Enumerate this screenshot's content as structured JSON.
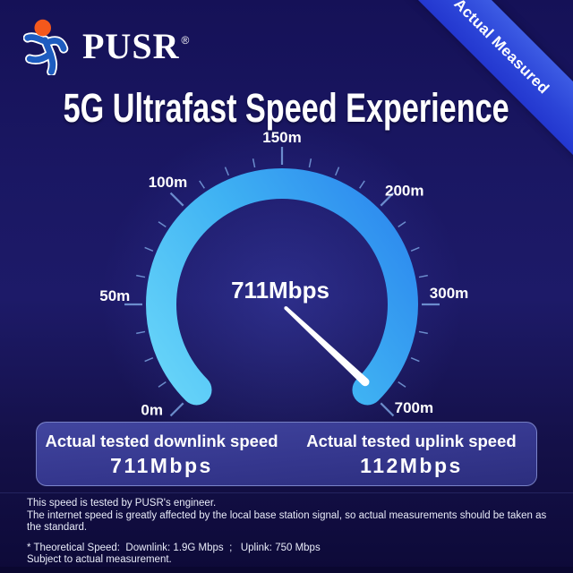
{
  "colors": {
    "background_top": "#151157",
    "background_bottom": "#0d0a38",
    "ribbon_blue": "#2c45d8",
    "ring_gradient": [
      "#68d5f9",
      "#3fb2f3",
      "#2b85ee"
    ],
    "tick": "#7fa9e6",
    "needle": "#ffffff",
    "panel_border": "#a5b2eb",
    "logo_head_orange": "#f4581c",
    "logo_body_blue": "#1d5cc0"
  },
  "logo": {
    "brand": "PUSR",
    "registered_mark": "®",
    "icon": "pusr-runner-icon"
  },
  "ribbon": {
    "label": "Actual Measured"
  },
  "header": {
    "title": "5G Ultrafast Speed Experience"
  },
  "gauge": {
    "center_value": "711Mbps",
    "labels": [
      {
        "text": "0m",
        "angle": -129
      },
      {
        "text": "50m",
        "angle": -87
      },
      {
        "text": "100m",
        "angle": -43
      },
      {
        "text": "150m",
        "angle": 0
      },
      {
        "text": "200m",
        "angle": 47
      },
      {
        "text": "300m",
        "angle": 86
      },
      {
        "text": "700m",
        "angle": 128
      }
    ],
    "arc_start": -135,
    "arc_end": 135,
    "tick_step": 11.25,
    "major_every": 4,
    "needle_angle": 133
  },
  "results": {
    "downlink": {
      "label": "Actual tested downlink speed",
      "value": "711Mbps"
    },
    "uplink": {
      "label": "Actual tested uplink speed",
      "value": "112Mbps"
    }
  },
  "footnotes": {
    "tested_by": "This speed is tested by PUSR's engineer.",
    "disclaimer": "The internet speed is greatly affected by the local base station signal, so actual measurements should be taken as the standard.",
    "theoretical": "* Theoretical Speed:  Downlink: 1.9G Mbps  ;   Uplink: 750 Mbps",
    "subject": "Subject to actual measurement."
  },
  "chart_data": {
    "type": "gauge",
    "title": "5G Ultrafast Speed Experience",
    "unit": "Mbps",
    "scale_labels": [
      "0m",
      "50m",
      "100m",
      "150m",
      "200m",
      "300m",
      "700m"
    ],
    "arc_span_deg": 270,
    "measured_value_label": "711Mbps",
    "needle_points_to": "700m",
    "downlink_mbps": 711,
    "uplink_mbps": 112,
    "theoretical_downlink": "1.9G Mbps",
    "theoretical_uplink": "750 Mbps"
  }
}
